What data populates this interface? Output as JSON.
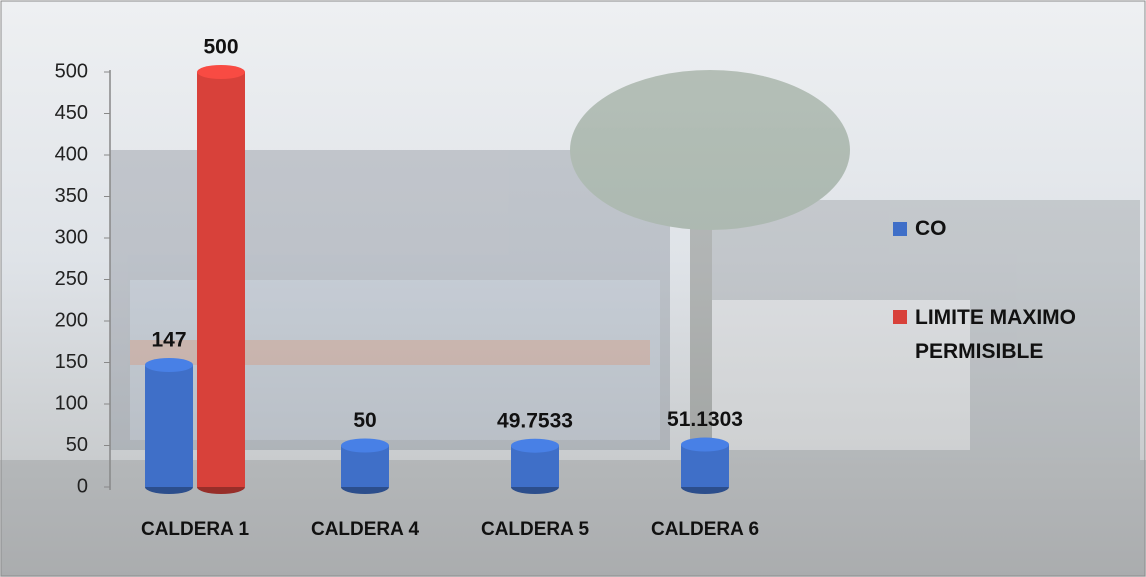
{
  "chart_data": {
    "type": "bar",
    "style": "cylinder",
    "categories": [
      "CALDERA 1",
      "CALDERA 4",
      "CALDERA 5",
      "CALDERA 6"
    ],
    "series": [
      {
        "name": "CO",
        "color": "#3f6fc8",
        "values": [
          147,
          50,
          49.7533,
          51.1303
        ]
      },
      {
        "name": "LIMITE MAXIMO PERMISIBLE",
        "color": "#d8413a",
        "values": [
          500,
          null,
          null,
          null
        ]
      }
    ],
    "ylim": [
      0,
      500
    ],
    "yticks": [
      0,
      50,
      100,
      150,
      200,
      250,
      300,
      350,
      400,
      450,
      500
    ],
    "legend": "right",
    "data_labels": true
  }
}
